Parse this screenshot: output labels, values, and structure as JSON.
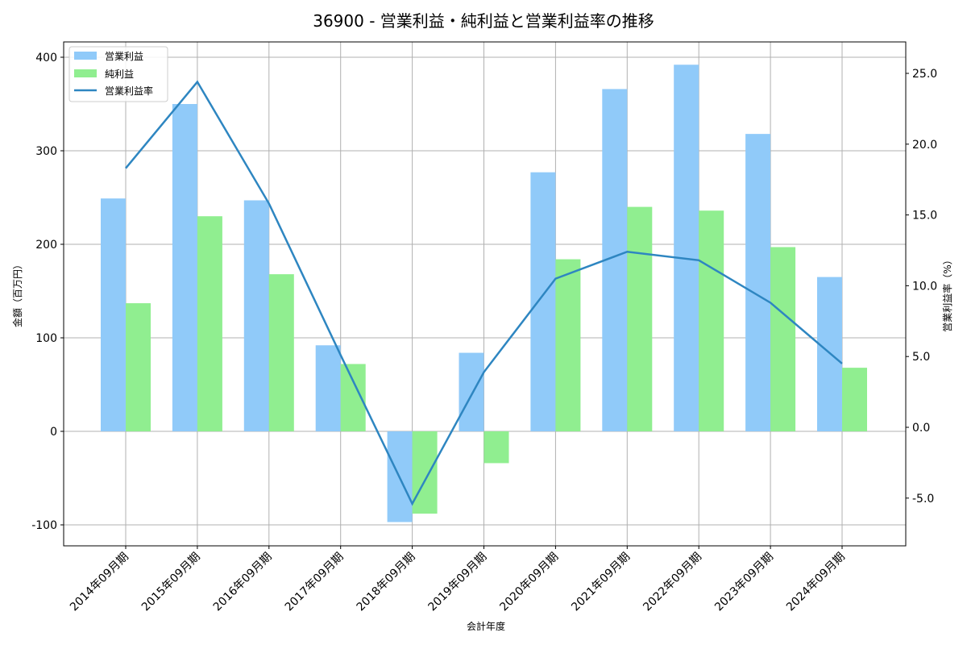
{
  "chart_data": {
    "type": "bar",
    "title": "36900 - 営業利益・純利益と営業利益率の推移",
    "xlabel": "会計年度",
    "ylabel": "金額（百万円）",
    "y2label": "営業利益率（%）",
    "categories": [
      "2014年09月期",
      "2015年09月期",
      "2016年09月期",
      "2017年09月期",
      "2018年09月期",
      "2019年09月期",
      "2020年09月期",
      "2021年09月期",
      "2022年09月期",
      "2023年09月期",
      "2024年09月期"
    ],
    "series": [
      {
        "name": "営業利益",
        "type": "bar",
        "axis": "left",
        "color": "#90CAF9",
        "values": [
          249,
          350,
          247,
          92,
          -97,
          84,
          277,
          366,
          392,
          318,
          165
        ]
      },
      {
        "name": "純利益",
        "type": "bar",
        "axis": "left",
        "color": "#90EE90",
        "values": [
          137,
          230,
          168,
          72,
          -88,
          -34,
          184,
          240,
          236,
          197,
          68
        ]
      },
      {
        "name": "営業利益率",
        "type": "line",
        "axis": "right",
        "color": "#2E86C1",
        "values": [
          18.3,
          24.4,
          15.8,
          5.1,
          -5.4,
          3.9,
          10.5,
          12.4,
          11.8,
          8.8,
          4.5
        ]
      }
    ],
    "ylim": [
      -122,
      416
    ],
    "y_ticks": [
      -100,
      0,
      100,
      200,
      300,
      400
    ],
    "y2lim": [
      -8.2,
      27.3
    ],
    "y2_ticks": [
      -5.0,
      0.0,
      5.0,
      10.0,
      15.0,
      20.0,
      25.0
    ],
    "grid": true,
    "legend_position": "upper left"
  }
}
